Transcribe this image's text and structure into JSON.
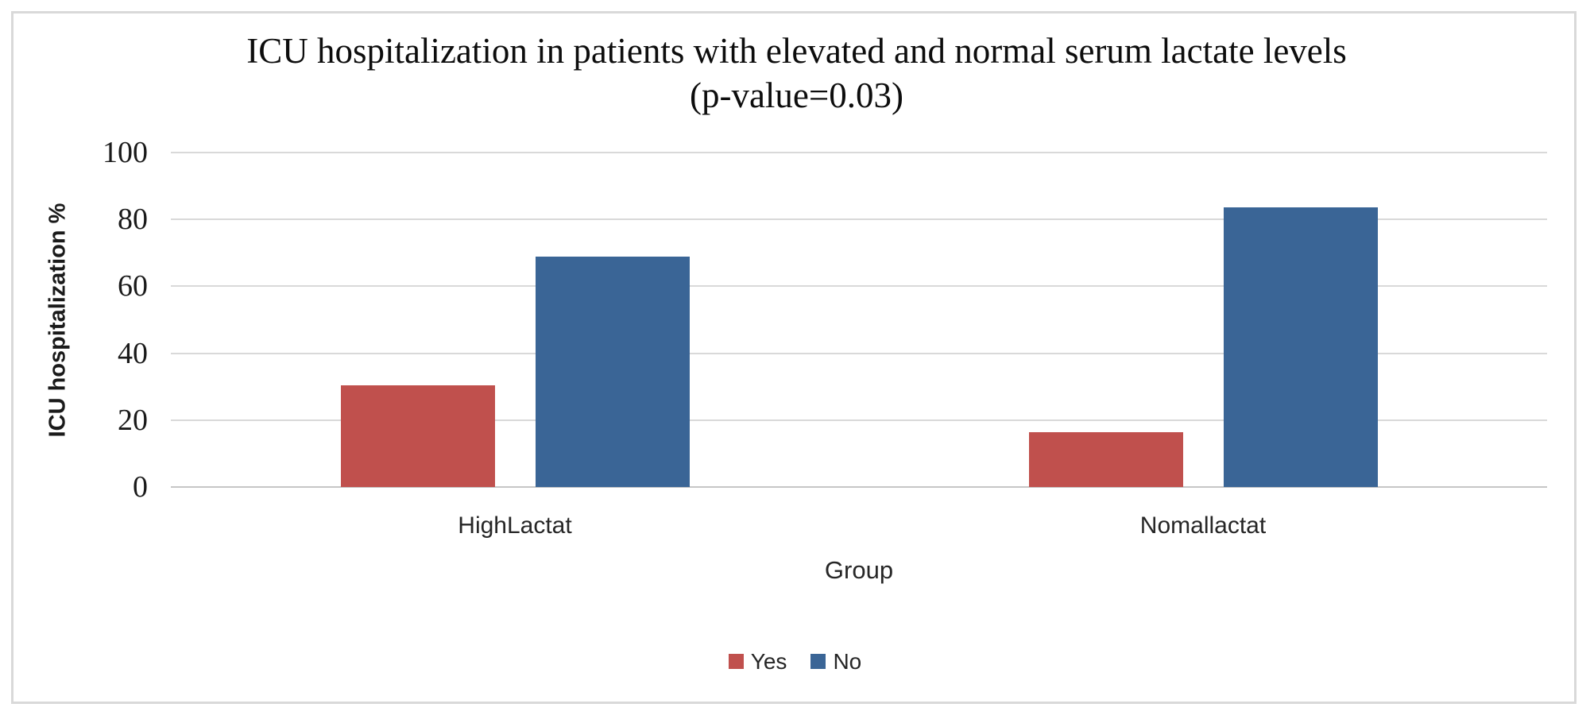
{
  "chart": {
    "title_line1": "ICU hospitalization in patients with elevated and normal serum lactate levels",
    "title_line2": "(p-value=0.03)"
  },
  "chart_data": {
    "type": "bar",
    "title": "ICU hospitalization in patients with elevated and normal serum lactate levels (p-value=0.03)",
    "categories": [
      "HighLactat",
      "Nomallactat"
    ],
    "series": [
      {
        "name": "Yes",
        "color": "#c0504d",
        "values": [
          30.5,
          16.5
        ]
      },
      {
        "name": "No",
        "color": "#3a6596",
        "values": [
          69,
          83.5
        ]
      }
    ],
    "xlabel": "Group",
    "ylabel": "ICU hospitalization %",
    "ylim": [
      0,
      100
    ],
    "yticks": [
      0,
      20,
      40,
      60,
      80,
      100
    ],
    "grid": true,
    "legend_position": "bottom",
    "gridline_color": "#d9d9d9",
    "text_color": "#262626"
  }
}
